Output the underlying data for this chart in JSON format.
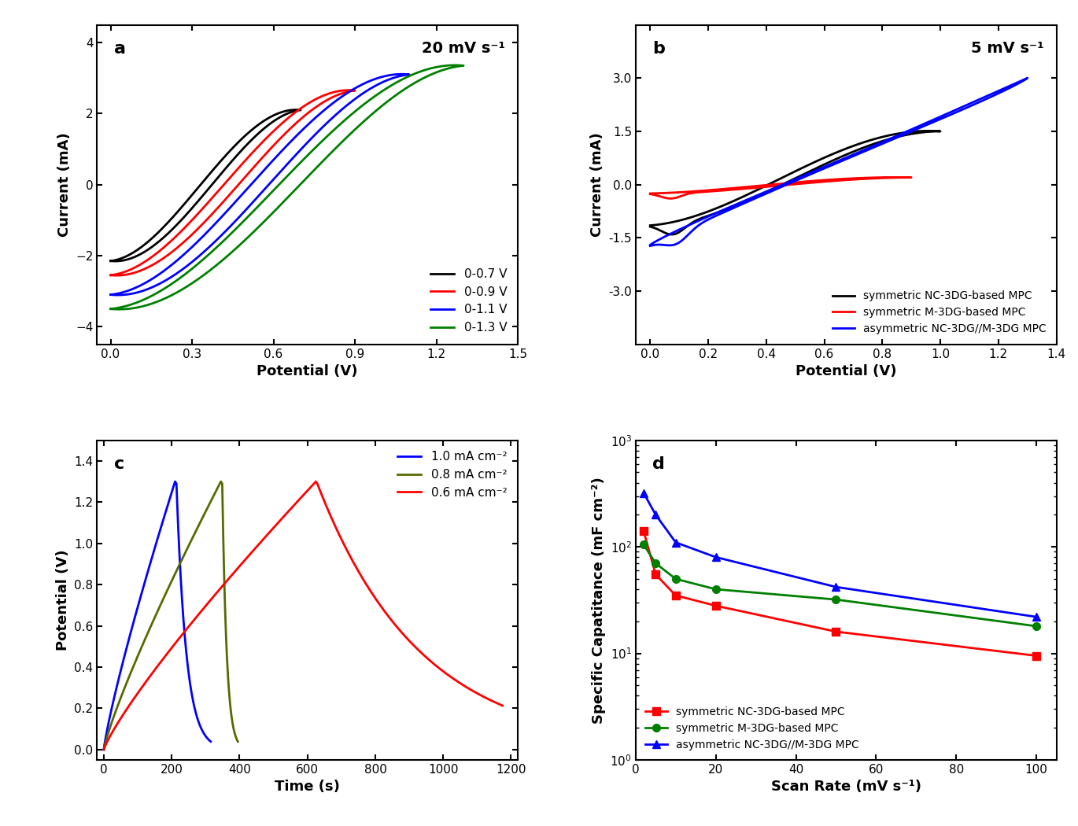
{
  "fig_width": 13.7,
  "fig_height": 10.5,
  "background_color": "#ffffff",
  "panel_a": {
    "label": "a",
    "annotation": "20 mV s⁻¹",
    "xlabel": "Potential (V)",
    "ylabel": "Current (mA)",
    "xlim": [
      -0.05,
      1.5
    ],
    "ylim": [
      -4.5,
      4.5
    ],
    "xticks": [
      0.0,
      0.3,
      0.6,
      0.9,
      1.2,
      1.5
    ],
    "yticks": [
      -4,
      -2,
      0,
      2,
      4
    ],
    "curves": [
      {
        "label": "0-0.7 V",
        "color": "#000000",
        "Vmax": 0.7,
        "Itop": 2.1,
        "Ibot": -2.15,
        "skew": 0.58
      },
      {
        "label": "0-0.9 V",
        "color": "#ff0000",
        "Vmax": 0.9,
        "Itop": 2.65,
        "Ibot": -2.55,
        "skew": 0.6
      },
      {
        "label": "0-1.1 V",
        "color": "#0000ff",
        "Vmax": 1.1,
        "Itop": 3.1,
        "Ibot": -3.1,
        "skew": 0.62
      },
      {
        "label": "0-1.3 V",
        "color": "#008000",
        "Vmax": 1.3,
        "Itop": 3.35,
        "Ibot": -3.5,
        "skew": 0.68
      }
    ]
  },
  "panel_b": {
    "label": "b",
    "annotation": "5 mV s⁻¹",
    "xlabel": "Potential (V)",
    "ylabel": "Current (mA)",
    "xlim": [
      -0.05,
      1.4
    ],
    "ylim": [
      -4.5,
      4.5
    ],
    "xticks": [
      0.0,
      0.2,
      0.4,
      0.6,
      0.8,
      1.0,
      1.2,
      1.4
    ],
    "yticks": [
      -3.0,
      -1.5,
      0.0,
      1.5,
      3.0
    ],
    "yticklabels": [
      "-3.0",
      "-1.5",
      "0.0",
      "1.5",
      "3.0"
    ]
  },
  "panel_c": {
    "label": "c",
    "xlabel": "Time (s)",
    "ylabel": "Potential (V)",
    "xlim": [
      -20,
      1220
    ],
    "ylim": [
      -0.05,
      1.5
    ],
    "xticks": [
      0,
      200,
      400,
      600,
      800,
      1000,
      1200
    ],
    "yticks": [
      0.0,
      0.2,
      0.4,
      0.6,
      0.8,
      1.0,
      1.2,
      1.4
    ],
    "curves": [
      {
        "label": "1.0 mA cm⁻²",
        "color": "#0000ff",
        "t_ch": 210,
        "t_dis": 315,
        "Vmax": 1.3
      },
      {
        "label": "0.8 mA cm⁻²",
        "color": "#556b00",
        "t_ch": 345,
        "t_dis": 395,
        "Vmax": 1.3
      },
      {
        "label": "0.6 mA cm⁻²",
        "color": "#ff0000",
        "t_ch": 625,
        "t_dis": 1175,
        "Vmax": 1.3
      }
    ]
  },
  "panel_d": {
    "label": "d",
    "xlabel": "Scan Rate (mV s⁻¹)",
    "ylabel": "Specific Capatitance (mF cm⁻²)",
    "xlim": [
      0,
      105
    ],
    "xticks": [
      0,
      20,
      40,
      60,
      80,
      100
    ],
    "curves": [
      {
        "label": "symmetric NC-3DG-based MPC",
        "color": "#ff0000",
        "marker": "s",
        "x": [
          2,
          5,
          10,
          20,
          50,
          100
        ],
        "y": [
          140,
          55,
          35,
          28,
          16,
          9.5
        ]
      },
      {
        "label": "symmetric M-3DG-based MPC",
        "color": "#008000",
        "marker": "o",
        "x": [
          2,
          5,
          10,
          20,
          50,
          100
        ],
        "y": [
          105,
          70,
          50,
          40,
          32,
          18
        ]
      },
      {
        "label": "asymmetric NC-3DG//M-3DG MPC",
        "color": "#0000ff",
        "marker": "^",
        "x": [
          2,
          5,
          10,
          20,
          50,
          100
        ],
        "y": [
          320,
          200,
          110,
          80,
          42,
          22
        ]
      }
    ]
  }
}
